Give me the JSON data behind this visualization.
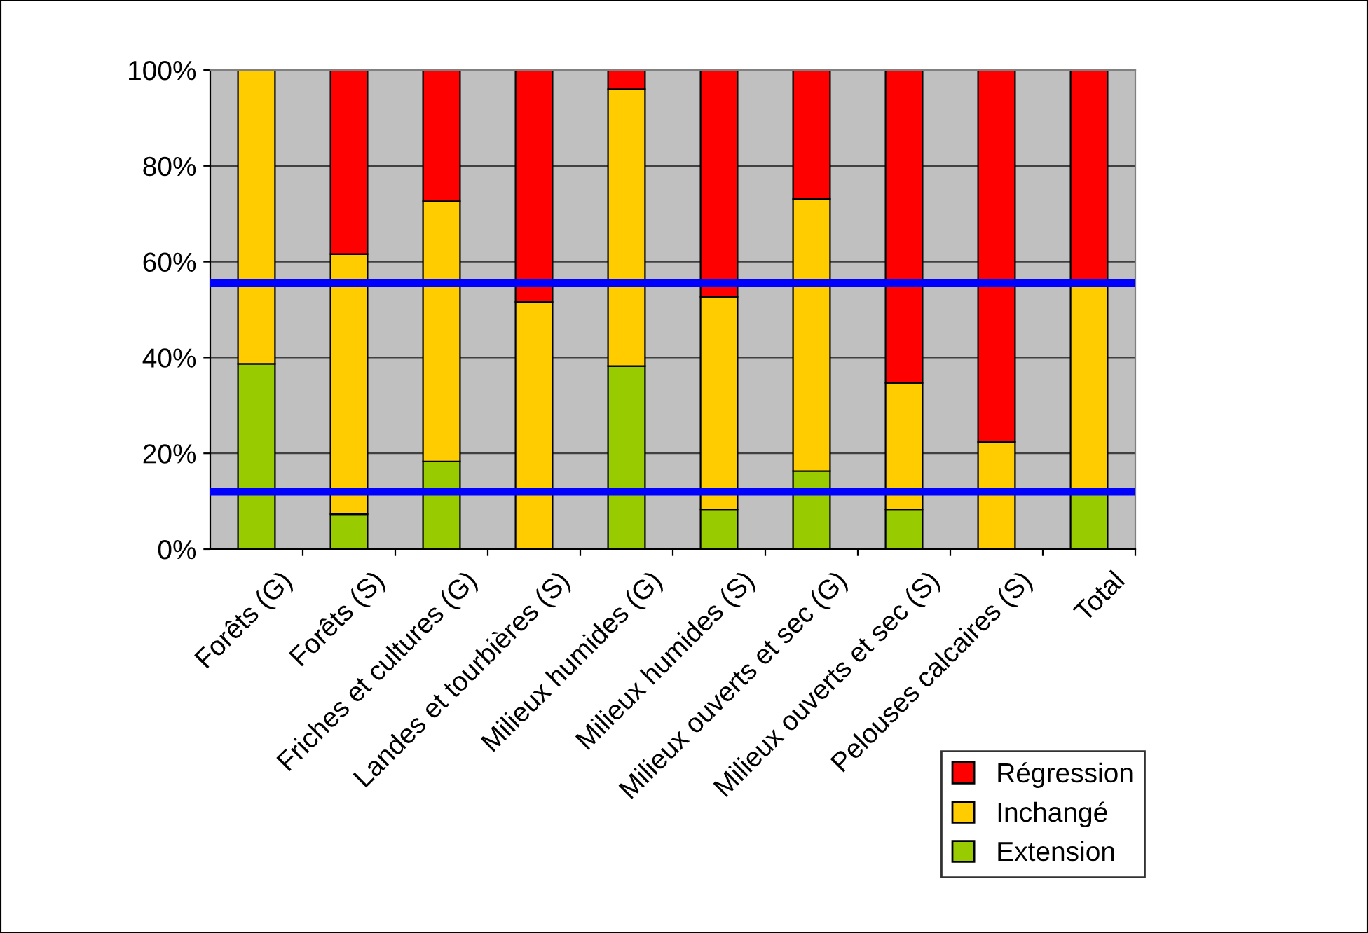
{
  "chart_data": {
    "type": "bar",
    "stacked": true,
    "categories": [
      "Forêts (G)",
      "Forêts (S)",
      "Friches et cultures (G)",
      "Landes et tourbières (S)",
      "Milieux humides (G)",
      "Milieux humides (S)",
      "Milieux ouverts et sec (G)",
      "Milieux ouverts et sec (S)",
      "Pelouses calcaires (S)",
      "Total"
    ],
    "series": [
      {
        "name": "Extension",
        "color": "#99cc00",
        "values": [
          38.7,
          7.3,
          18.3,
          0,
          38.2,
          8.3,
          16.3,
          8.3,
          0,
          12
        ]
      },
      {
        "name": "Inchangé",
        "color": "#ffcc00",
        "values": [
          61.3,
          54.3,
          54.3,
          51.6,
          57.8,
          44.4,
          56.8,
          26.4,
          22.4,
          43.5
        ]
      },
      {
        "name": "Régression",
        "color": "#ff0000",
        "values": [
          0,
          38.4,
          27.4,
          48.4,
          4.0,
          47.3,
          26.9,
          65.3,
          77.6,
          44.5
        ]
      }
    ],
    "ylim": [
      0,
      100
    ],
    "yticks": [
      {
        "value": 0,
        "label": "0%"
      },
      {
        "value": 20,
        "label": "20%"
      },
      {
        "value": 40,
        "label": "40%"
      },
      {
        "value": 60,
        "label": "60%"
      },
      {
        "value": 80,
        "label": "80%"
      },
      {
        "value": 100,
        "label": "100%"
      }
    ],
    "grid": "y",
    "legend": "bottom right",
    "ref_lines": [
      {
        "axis": "y",
        "value": 55.5,
        "color": "#0000ff"
      },
      {
        "axis": "y",
        "value": 12,
        "color": "#0000ff"
      }
    ]
  }
}
